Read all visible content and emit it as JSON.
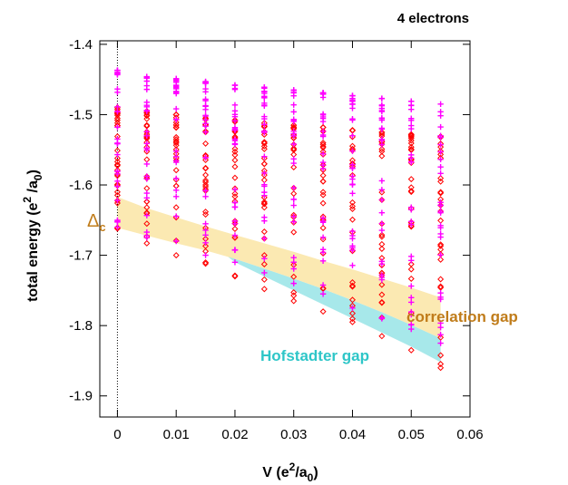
{
  "chart_data": {
    "type": "scatter",
    "title": "4 electrons",
    "xlabel": {
      "base": "V (e",
      "sup": "2",
      "mid": "/a",
      "sub": "0",
      "end": ")"
    },
    "ylabel": {
      "base": "total energy (e",
      "sup": "2",
      "mid": " /a",
      "sub": "0",
      "end": ")"
    },
    "xlim": [
      -0.003,
      0.06
    ],
    "ylim": [
      -1.93,
      -1.395
    ],
    "x_ticks": [
      0,
      0.01,
      0.02,
      0.03,
      0.04,
      0.05,
      0.06
    ],
    "x_tick_labels": [
      "0",
      "0.01",
      "0.02",
      "0.03",
      "0.04",
      "0.05",
      "0.06"
    ],
    "y_ticks": [
      -1.4,
      -1.5,
      -1.6,
      -1.7,
      -1.8,
      -1.9
    ],
    "y_tick_labels": [
      "-1.4",
      "-1.5",
      "-1.6",
      "-1.7",
      "-1.8",
      "-1.9"
    ],
    "grid": false,
    "reference_line_x": 0,
    "x": [
      0,
      0.005,
      0.01,
      0.015,
      0.02,
      0.025,
      0.03,
      0.035,
      0.04,
      0.045,
      0.05,
      0.055
    ],
    "series": [
      {
        "marker": "plus",
        "color": "#ff00ff",
        "top": [
          -1.437,
          -1.446,
          -1.449,
          -1.453,
          -1.458,
          -1.461,
          -1.465,
          -1.469,
          -1.473,
          -1.477,
          -1.481,
          -1.485
        ],
        "bottom": [
          -1.66,
          -1.675,
          -1.68,
          -1.7,
          -1.71,
          -1.725,
          -1.74,
          -1.755,
          -1.775,
          -1.79,
          -1.805,
          -1.825
        ]
      },
      {
        "marker": "diamond",
        "color": "#ff0000",
        "top": [
          -1.49,
          -1.495,
          -1.5,
          -1.505,
          -1.508,
          -1.512,
          -1.515,
          -1.518,
          -1.522,
          -1.525,
          -1.528,
          -1.531
        ],
        "bottom": [
          -1.662,
          -1.683,
          -1.7,
          -1.712,
          -1.73,
          -1.748,
          -1.765,
          -1.78,
          -1.795,
          -1.815,
          -1.835,
          -1.86
        ]
      }
    ],
    "bands": [
      {
        "label": "correlation gap",
        "color": "#fbe9b2",
        "label_color": "#c07c1a",
        "upper": [
          -1.617,
          -1.633,
          -1.646,
          -1.659,
          -1.671,
          -1.683,
          -1.695,
          -1.708,
          -1.72,
          -1.733,
          -1.746,
          -1.76
        ],
        "lower": [
          -1.661,
          -1.672,
          -1.683,
          -1.693,
          -1.705,
          -1.719,
          -1.733,
          -1.748,
          -1.764,
          -1.781,
          -1.799,
          -1.818
        ]
      },
      {
        "label": "Hofstadter gap",
        "color": "#a7e8ea",
        "label_color": "#2ec6c8",
        "x": [
          0.017,
          0.02,
          0.025,
          0.03,
          0.035,
          0.04,
          0.045,
          0.05,
          0.055
        ],
        "upper": [
          -1.69,
          -1.705,
          -1.719,
          -1.733,
          -1.748,
          -1.764,
          -1.781,
          -1.799,
          -1.818
        ],
        "lower": [
          -1.69,
          -1.71,
          -1.73,
          -1.75,
          -1.77,
          -1.79,
          -1.81,
          -1.83,
          -1.852
        ]
      }
    ],
    "annotations": [
      {
        "text": "Δ",
        "sub": "c",
        "color": "#c07c1a"
      }
    ]
  }
}
